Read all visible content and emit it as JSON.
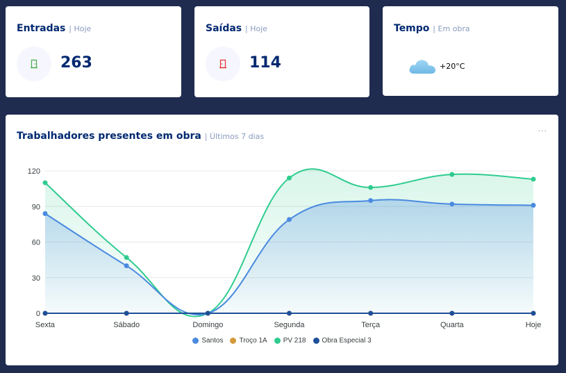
{
  "cards": {
    "entradas": {
      "title": "Entradas",
      "subtitle": "Hoje",
      "value": "263",
      "icon": "door-in-icon",
      "icon_color": "#4caf50"
    },
    "saidas": {
      "title": "Saídas",
      "subtitle": "Hoje",
      "value": "114",
      "icon": "door-out-icon",
      "icon_color": "#e53935"
    },
    "tempo": {
      "title": "Tempo",
      "subtitle": "Em obra",
      "temperature": "+20°C",
      "icon": "cloud-icon",
      "icon_color": "#81c6ee"
    }
  },
  "chart_card": {
    "title": "Trabalhadores presentes em obra",
    "subtitle": "Últimos 7 dias",
    "menu": "..."
  },
  "chart_data": {
    "type": "area",
    "categories": [
      "Sexta",
      "Sábado",
      "Domingo",
      "Segunda",
      "Terça",
      "Quarta",
      "Hoje"
    ],
    "series": [
      {
        "name": "Santos",
        "color": "#4a8ae0",
        "values": [
          84,
          40,
          0,
          79,
          95,
          92,
          91
        ]
      },
      {
        "name": "Troço 1A",
        "color": "#d39b3a",
        "values": [
          0,
          0,
          0,
          0,
          0,
          0,
          0
        ]
      },
      {
        "name": "PV 218",
        "color": "#2ecc8f",
        "values": [
          110,
          47,
          0,
          114,
          106,
          117,
          113
        ]
      },
      {
        "name": "Obra Especial 3",
        "color": "#1e4f99",
        "values": [
          0,
          0,
          0,
          0,
          0,
          0,
          0
        ]
      }
    ],
    "yticks": [
      0,
      30,
      60,
      90,
      120
    ],
    "ylim": [
      0,
      120
    ],
    "grid": true,
    "legend_position": "bottom-center"
  }
}
